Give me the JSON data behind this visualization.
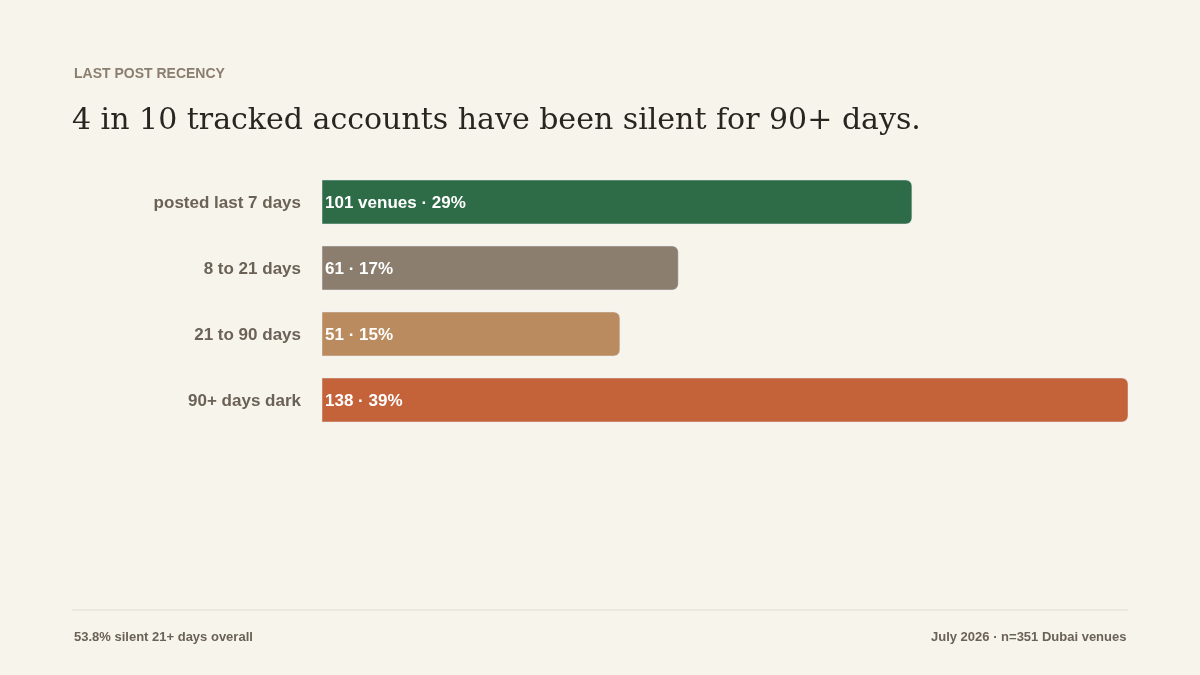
{
  "chart_data": {
    "type": "bar",
    "orientation": "horizontal",
    "subtitle": "LAST POST RECENCY",
    "title": "4 in 10 tracked accounts have been silent for 90+ days.",
    "categories": [
      "posted last 7 days",
      "8 to 21 days",
      "21 to 90 days",
      "90+ days dark"
    ],
    "values": [
      101,
      61,
      51,
      138
    ],
    "colors": [
      "#2e6b47",
      "#8b7e6e",
      "#b98b5e",
      "#c4623a"
    ],
    "value_labels": [
      "101 venues · 29%",
      "61 · 17%",
      "51 · 15%",
      "138 · 39%"
    ],
    "annotations": [
      "53.8% silent 21+ days overall",
      "July 2026 · n=351 Dubai venues"
    ],
    "grid": false,
    "legend": false
  }
}
